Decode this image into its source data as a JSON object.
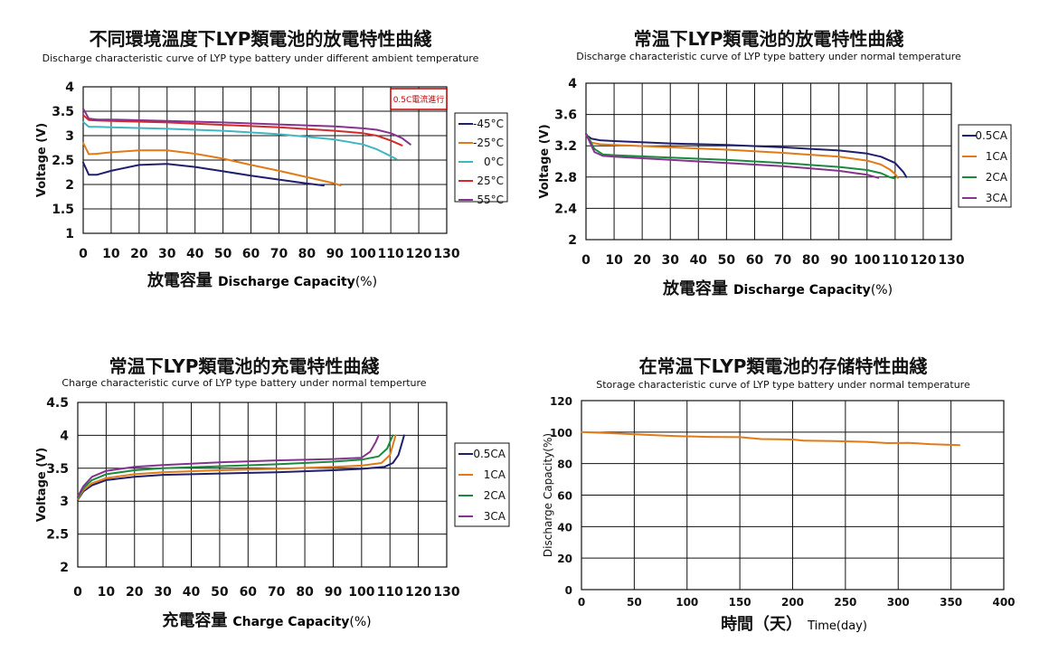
{
  "chart_data": [
    {
      "type": "line",
      "title": "不同環境溫度下LYP類電池的放電特性曲綫",
      "subtitle": "Discharge characteristic curve of LYP type battery under different ambient temperature",
      "xlabel_cn": "放電容量",
      "xlabel_en": "Discharge Capacity",
      "xlabel_unit": "(%)",
      "ylabel": "Voltage (V)",
      "xlim": [
        0,
        130
      ],
      "ylim": [
        1,
        4
      ],
      "xticks": [
        "0",
        "10",
        "20",
        "30",
        "40",
        "50",
        "60",
        "70",
        "80",
        "90",
        "100",
        "110",
        "120",
        "130"
      ],
      "yticks": [
        "1",
        "1.5",
        "2",
        "2.5",
        "3",
        "3.5",
        "4"
      ],
      "grid": true,
      "legend": "right",
      "annotation": "0.5C電流進行",
      "series": [
        {
          "name": "-45°C",
          "color": "#1f1f6e",
          "x": [
            0,
            2,
            5,
            10,
            20,
            30,
            40,
            50,
            60,
            70,
            80,
            86
          ],
          "y": [
            2.45,
            2.2,
            2.2,
            2.28,
            2.4,
            2.42,
            2.36,
            2.27,
            2.18,
            2.1,
            2.02,
            1.98
          ]
        },
        {
          "name": "-25°C",
          "color": "#e07b18",
          "x": [
            0,
            2,
            5,
            10,
            20,
            30,
            40,
            50,
            60,
            70,
            80,
            90,
            92
          ],
          "y": [
            2.85,
            2.62,
            2.63,
            2.66,
            2.7,
            2.7,
            2.63,
            2.53,
            2.4,
            2.28,
            2.15,
            2.02,
            1.98
          ]
        },
        {
          "name": "0°C",
          "color": "#3fb6c0",
          "x": [
            0,
            2,
            5,
            10,
            30,
            50,
            70,
            90,
            100,
            105,
            110,
            112
          ],
          "y": [
            3.28,
            3.18,
            3.18,
            3.17,
            3.14,
            3.1,
            3.03,
            2.92,
            2.82,
            2.72,
            2.58,
            2.52
          ]
        },
        {
          "name": "25°C",
          "color": "#d42a2a",
          "x": [
            0,
            2,
            5,
            10,
            30,
            50,
            70,
            90,
            100,
            105,
            110,
            114
          ],
          "y": [
            3.42,
            3.32,
            3.31,
            3.3,
            3.27,
            3.22,
            3.17,
            3.1,
            3.05,
            3.0,
            2.9,
            2.8
          ]
        },
        {
          "name": "55°C",
          "color": "#86338f",
          "x": [
            0,
            2,
            5,
            10,
            30,
            50,
            70,
            90,
            100,
            105,
            110,
            114,
            117
          ],
          "y": [
            3.55,
            3.35,
            3.33,
            3.33,
            3.3,
            3.27,
            3.23,
            3.19,
            3.15,
            3.12,
            3.05,
            2.95,
            2.82
          ]
        }
      ]
    },
    {
      "type": "line",
      "title": "常温下LYP類電池的放電特性曲綫",
      "subtitle": "Discharge characteristic curve of LYP  type battery under normal temperature",
      "xlabel_cn": "放電容量",
      "xlabel_en": "Discharge Capacity",
      "xlabel_unit": "(%)",
      "ylabel": "Voltage (V)",
      "xlim": [
        0,
        130
      ],
      "ylim": [
        2,
        4
      ],
      "xticks": [
        "0",
        "10",
        "20",
        "30",
        "40",
        "50",
        "60",
        "70",
        "80",
        "90",
        "100",
        "110",
        "120",
        "130"
      ],
      "yticks": [
        "2",
        "2.4",
        "2.8",
        "3.2",
        "3.6",
        "4"
      ],
      "grid": true,
      "legend": "right",
      "series": [
        {
          "name": "0.5CA",
          "color": "#1f1f6e",
          "x": [
            0,
            2,
            5,
            10,
            30,
            50,
            70,
            90,
            100,
            105,
            110,
            113,
            114
          ],
          "y": [
            3.34,
            3.29,
            3.27,
            3.26,
            3.23,
            3.21,
            3.18,
            3.14,
            3.1,
            3.06,
            2.98,
            2.86,
            2.8
          ]
        },
        {
          "name": "1CA",
          "color": "#e07b18",
          "x": [
            0,
            2,
            5,
            10,
            30,
            50,
            70,
            90,
            100,
            105,
            108,
            110,
            111
          ],
          "y": [
            3.34,
            3.24,
            3.22,
            3.21,
            3.18,
            3.15,
            3.11,
            3.06,
            3.01,
            2.96,
            2.9,
            2.84,
            2.79
          ]
        },
        {
          "name": "2CA",
          "color": "#1a8a3c",
          "x": [
            0,
            3,
            6,
            10,
            30,
            50,
            70,
            90,
            100,
            105,
            108,
            110
          ],
          "y": [
            3.36,
            3.16,
            3.09,
            3.08,
            3.05,
            3.02,
            2.98,
            2.93,
            2.89,
            2.85,
            2.8,
            2.78
          ]
        },
        {
          "name": "3CA",
          "color": "#86338f",
          "x": [
            0,
            3,
            6,
            10,
            30,
            50,
            70,
            90,
            100,
            103,
            104
          ],
          "y": [
            3.35,
            3.12,
            3.07,
            3.06,
            3.02,
            2.98,
            2.94,
            2.88,
            2.83,
            2.8,
            2.79
          ]
        }
      ]
    },
    {
      "type": "line",
      "title": "常温下LYP類電池的充電特性曲綫",
      "subtitle": "Charge characteristic curve of LYP type battery under normal temperture",
      "xlabel_cn": "充電容量",
      "xlabel_en": "Charge Capacity",
      "xlabel_unit": "(%)",
      "ylabel": "Voltage (V)",
      "xlim": [
        0,
        130
      ],
      "ylim": [
        2,
        4.5
      ],
      "xticks": [
        "0",
        "10",
        "20",
        "30",
        "40",
        "50",
        "60",
        "70",
        "80",
        "90",
        "100",
        "110",
        "120",
        "130"
      ],
      "yticks": [
        "2",
        "2.5",
        "3",
        "3.5",
        "4",
        "4.5"
      ],
      "grid": true,
      "legend": "right",
      "series": [
        {
          "name": "0.5CA",
          "color": "#1f1f6e",
          "x": [
            0,
            2,
            5,
            10,
            20,
            30,
            50,
            70,
            90,
            100,
            108,
            111,
            113,
            114,
            115
          ],
          "y": [
            3.02,
            3.15,
            3.24,
            3.32,
            3.37,
            3.4,
            3.42,
            3.44,
            3.47,
            3.49,
            3.52,
            3.58,
            3.7,
            3.85,
            4.0
          ]
        },
        {
          "name": "1CA",
          "color": "#e07b18",
          "x": [
            0,
            2,
            5,
            10,
            20,
            30,
            50,
            70,
            90,
            100,
            107,
            110,
            111,
            112
          ],
          "y": [
            3.03,
            3.17,
            3.27,
            3.35,
            3.41,
            3.44,
            3.47,
            3.49,
            3.52,
            3.54,
            3.58,
            3.7,
            3.85,
            4.0
          ]
        },
        {
          "name": "2CA",
          "color": "#1a8a3c",
          "x": [
            0,
            2,
            5,
            10,
            20,
            30,
            50,
            70,
            90,
            100,
            106,
            109,
            110,
            111
          ],
          "y": [
            3.05,
            3.2,
            3.32,
            3.41,
            3.47,
            3.5,
            3.53,
            3.56,
            3.6,
            3.63,
            3.68,
            3.8,
            3.9,
            4.0
          ]
        },
        {
          "name": "3CA",
          "color": "#86338f",
          "x": [
            0,
            2,
            5,
            10,
            20,
            30,
            50,
            70,
            90,
            100,
            103,
            105,
            106
          ],
          "y": [
            3.07,
            3.23,
            3.37,
            3.46,
            3.52,
            3.55,
            3.59,
            3.62,
            3.64,
            3.66,
            3.75,
            3.9,
            4.0
          ]
        }
      ]
    },
    {
      "type": "line",
      "title": "在常温下LYP類電池的存储特性曲綫",
      "subtitle": "Storage characteristic curve of LYP type battery under normal temperature",
      "xlabel_cn": "時間（天）",
      "xlabel_en": "Time(day)",
      "ylabel": "Discharge Capacity(%)",
      "xlim": [
        0,
        400
      ],
      "ylim": [
        0,
        120
      ],
      "xticks": [
        "0",
        "50",
        "100",
        "150",
        "200",
        "250",
        "300",
        "350",
        "400"
      ],
      "yticks": [
        "0",
        "20",
        "40",
        "60",
        "80",
        "100",
        "120"
      ],
      "grid": true,
      "series": [
        {
          "name": "",
          "color": "#e07b18",
          "x": [
            0,
            30,
            60,
            90,
            120,
            150,
            170,
            200,
            210,
            240,
            270,
            290,
            310,
            330,
            358
          ],
          "y": [
            100,
            99.3,
            98.3,
            97.5,
            97,
            96.8,
            95.6,
            95.3,
            94.6,
            94.3,
            93.8,
            93,
            93.2,
            92.4,
            91.7
          ]
        }
      ]
    }
  ]
}
